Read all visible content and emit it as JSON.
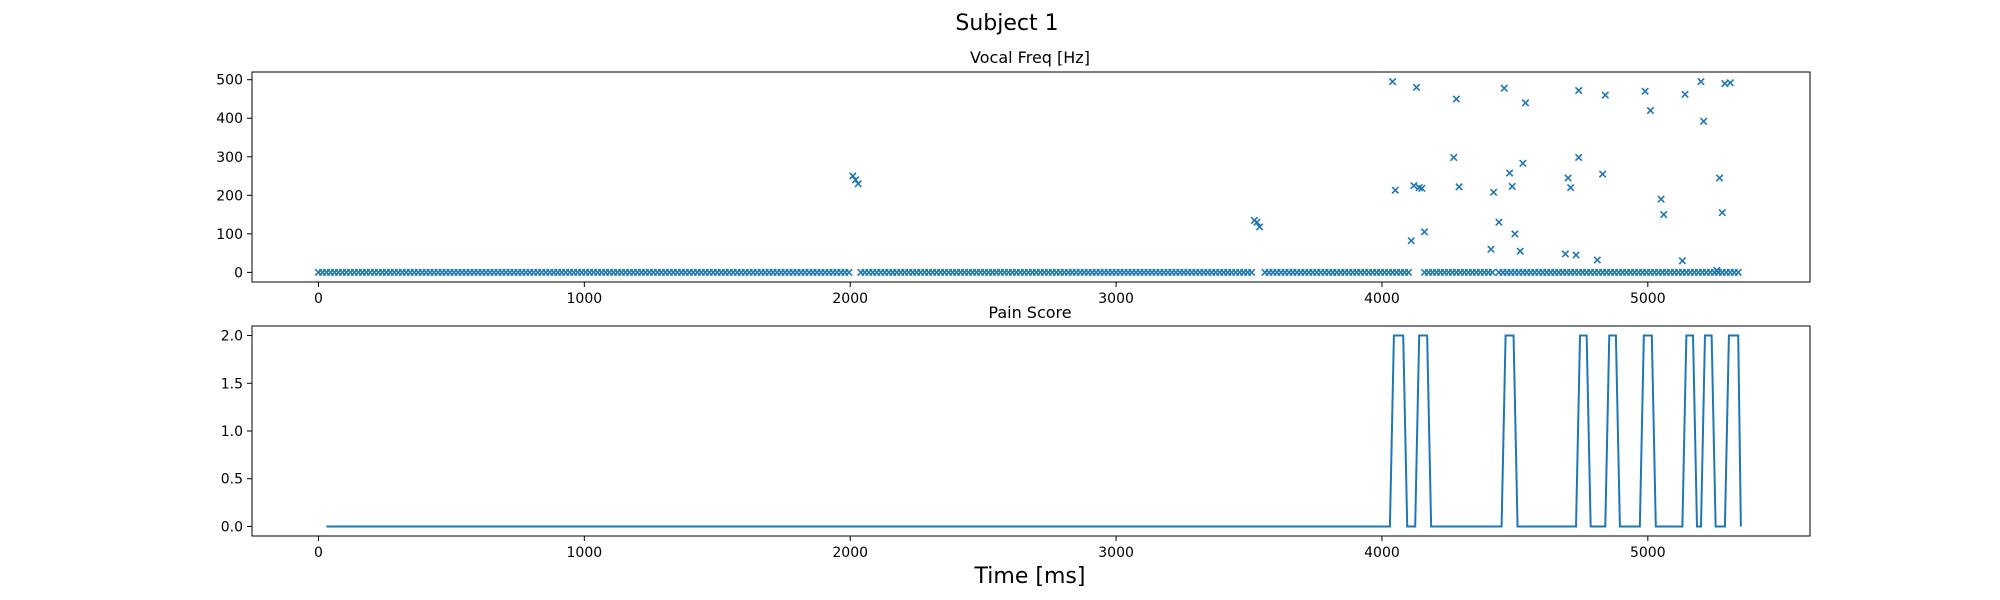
{
  "figure": {
    "suptitle": "Subject 1",
    "xlabel": "Time [ms]"
  },
  "colors": {
    "series": "#1f77b4",
    "axes": "#000000",
    "background": "#ffffff"
  },
  "chart_data": [
    {
      "type": "scatter",
      "title": "Vocal Freq [Hz]",
      "marker": "x",
      "xlim": [
        -250,
        5610
      ],
      "ylim": [
        -25,
        520
      ],
      "xticks": [
        0,
        1000,
        2000,
        3000,
        4000,
        5000
      ],
      "yticks": [
        0,
        100,
        200,
        300,
        400,
        500
      ],
      "grid": false,
      "baseline": {
        "y": 0,
        "segments": [
          [
            0,
            2000
          ],
          [
            2040,
            3510
          ],
          [
            3560,
            4100
          ],
          [
            4160,
            4420
          ],
          [
            4440,
            5340
          ]
        ],
        "step": 15
      },
      "points": [
        [
          2010,
          250
        ],
        [
          2020,
          240
        ],
        [
          2030,
          230
        ],
        [
          3520,
          135
        ],
        [
          3530,
          130
        ],
        [
          3540,
          118
        ],
        [
          4040,
          495
        ],
        [
          4050,
          213
        ],
        [
          4110,
          82
        ],
        [
          4120,
          225
        ],
        [
          4130,
          480
        ],
        [
          4140,
          220
        ],
        [
          4150,
          218
        ],
        [
          4160,
          105
        ],
        [
          4270,
          298
        ],
        [
          4280,
          450
        ],
        [
          4290,
          222
        ],
        [
          4410,
          60
        ],
        [
          4420,
          208
        ],
        [
          4440,
          130
        ],
        [
          4460,
          478
        ],
        [
          4480,
          258
        ],
        [
          4490,
          223
        ],
        [
          4500,
          100
        ],
        [
          4520,
          55
        ],
        [
          4530,
          283
        ],
        [
          4540,
          440
        ],
        [
          4690,
          48
        ],
        [
          4700,
          245
        ],
        [
          4710,
          220
        ],
        [
          4730,
          45
        ],
        [
          4740,
          298
        ],
        [
          4740,
          472
        ],
        [
          4810,
          32
        ],
        [
          4830,
          255
        ],
        [
          4840,
          460
        ],
        [
          4990,
          470
        ],
        [
          5010,
          420
        ],
        [
          5050,
          190
        ],
        [
          5060,
          150
        ],
        [
          5130,
          30
        ],
        [
          5140,
          462
        ],
        [
          5200,
          495
        ],
        [
          5210,
          392
        ],
        [
          5260,
          5
        ],
        [
          5270,
          245
        ],
        [
          5280,
          155
        ],
        [
          5290,
          490
        ],
        [
          5310,
          492
        ]
      ]
    },
    {
      "type": "line",
      "title": "Pain Score",
      "xlim": [
        -250,
        5610
      ],
      "ylim": [
        -0.1,
        2.1
      ],
      "xticks": [
        0,
        1000,
        2000,
        3000,
        4000,
        5000
      ],
      "yticks": [
        0.0,
        0.5,
        1.0,
        1.5,
        2.0
      ],
      "ytick_labels": [
        "0.0",
        "0.5",
        "1.0",
        "1.5",
        "2.0"
      ],
      "grid": false,
      "x": [
        30,
        4030,
        4045,
        4080,
        4095,
        4125,
        4140,
        4170,
        4185,
        4450,
        4465,
        4495,
        4510,
        4730,
        4745,
        4770,
        4785,
        4840,
        4855,
        4880,
        4895,
        4970,
        4985,
        5015,
        5030,
        5130,
        5145,
        5170,
        5185,
        5200,
        5215,
        5240,
        5255,
        5290,
        5305,
        5340,
        5350
      ],
      "y": [
        0,
        0,
        2,
        2,
        0,
        0,
        2,
        2,
        0,
        0,
        2,
        2,
        0,
        0,
        2,
        2,
        0,
        0,
        2,
        2,
        0,
        0,
        2,
        2,
        0,
        0,
        2,
        2,
        0,
        0,
        2,
        2,
        0,
        0,
        2,
        2,
        0
      ]
    }
  ]
}
